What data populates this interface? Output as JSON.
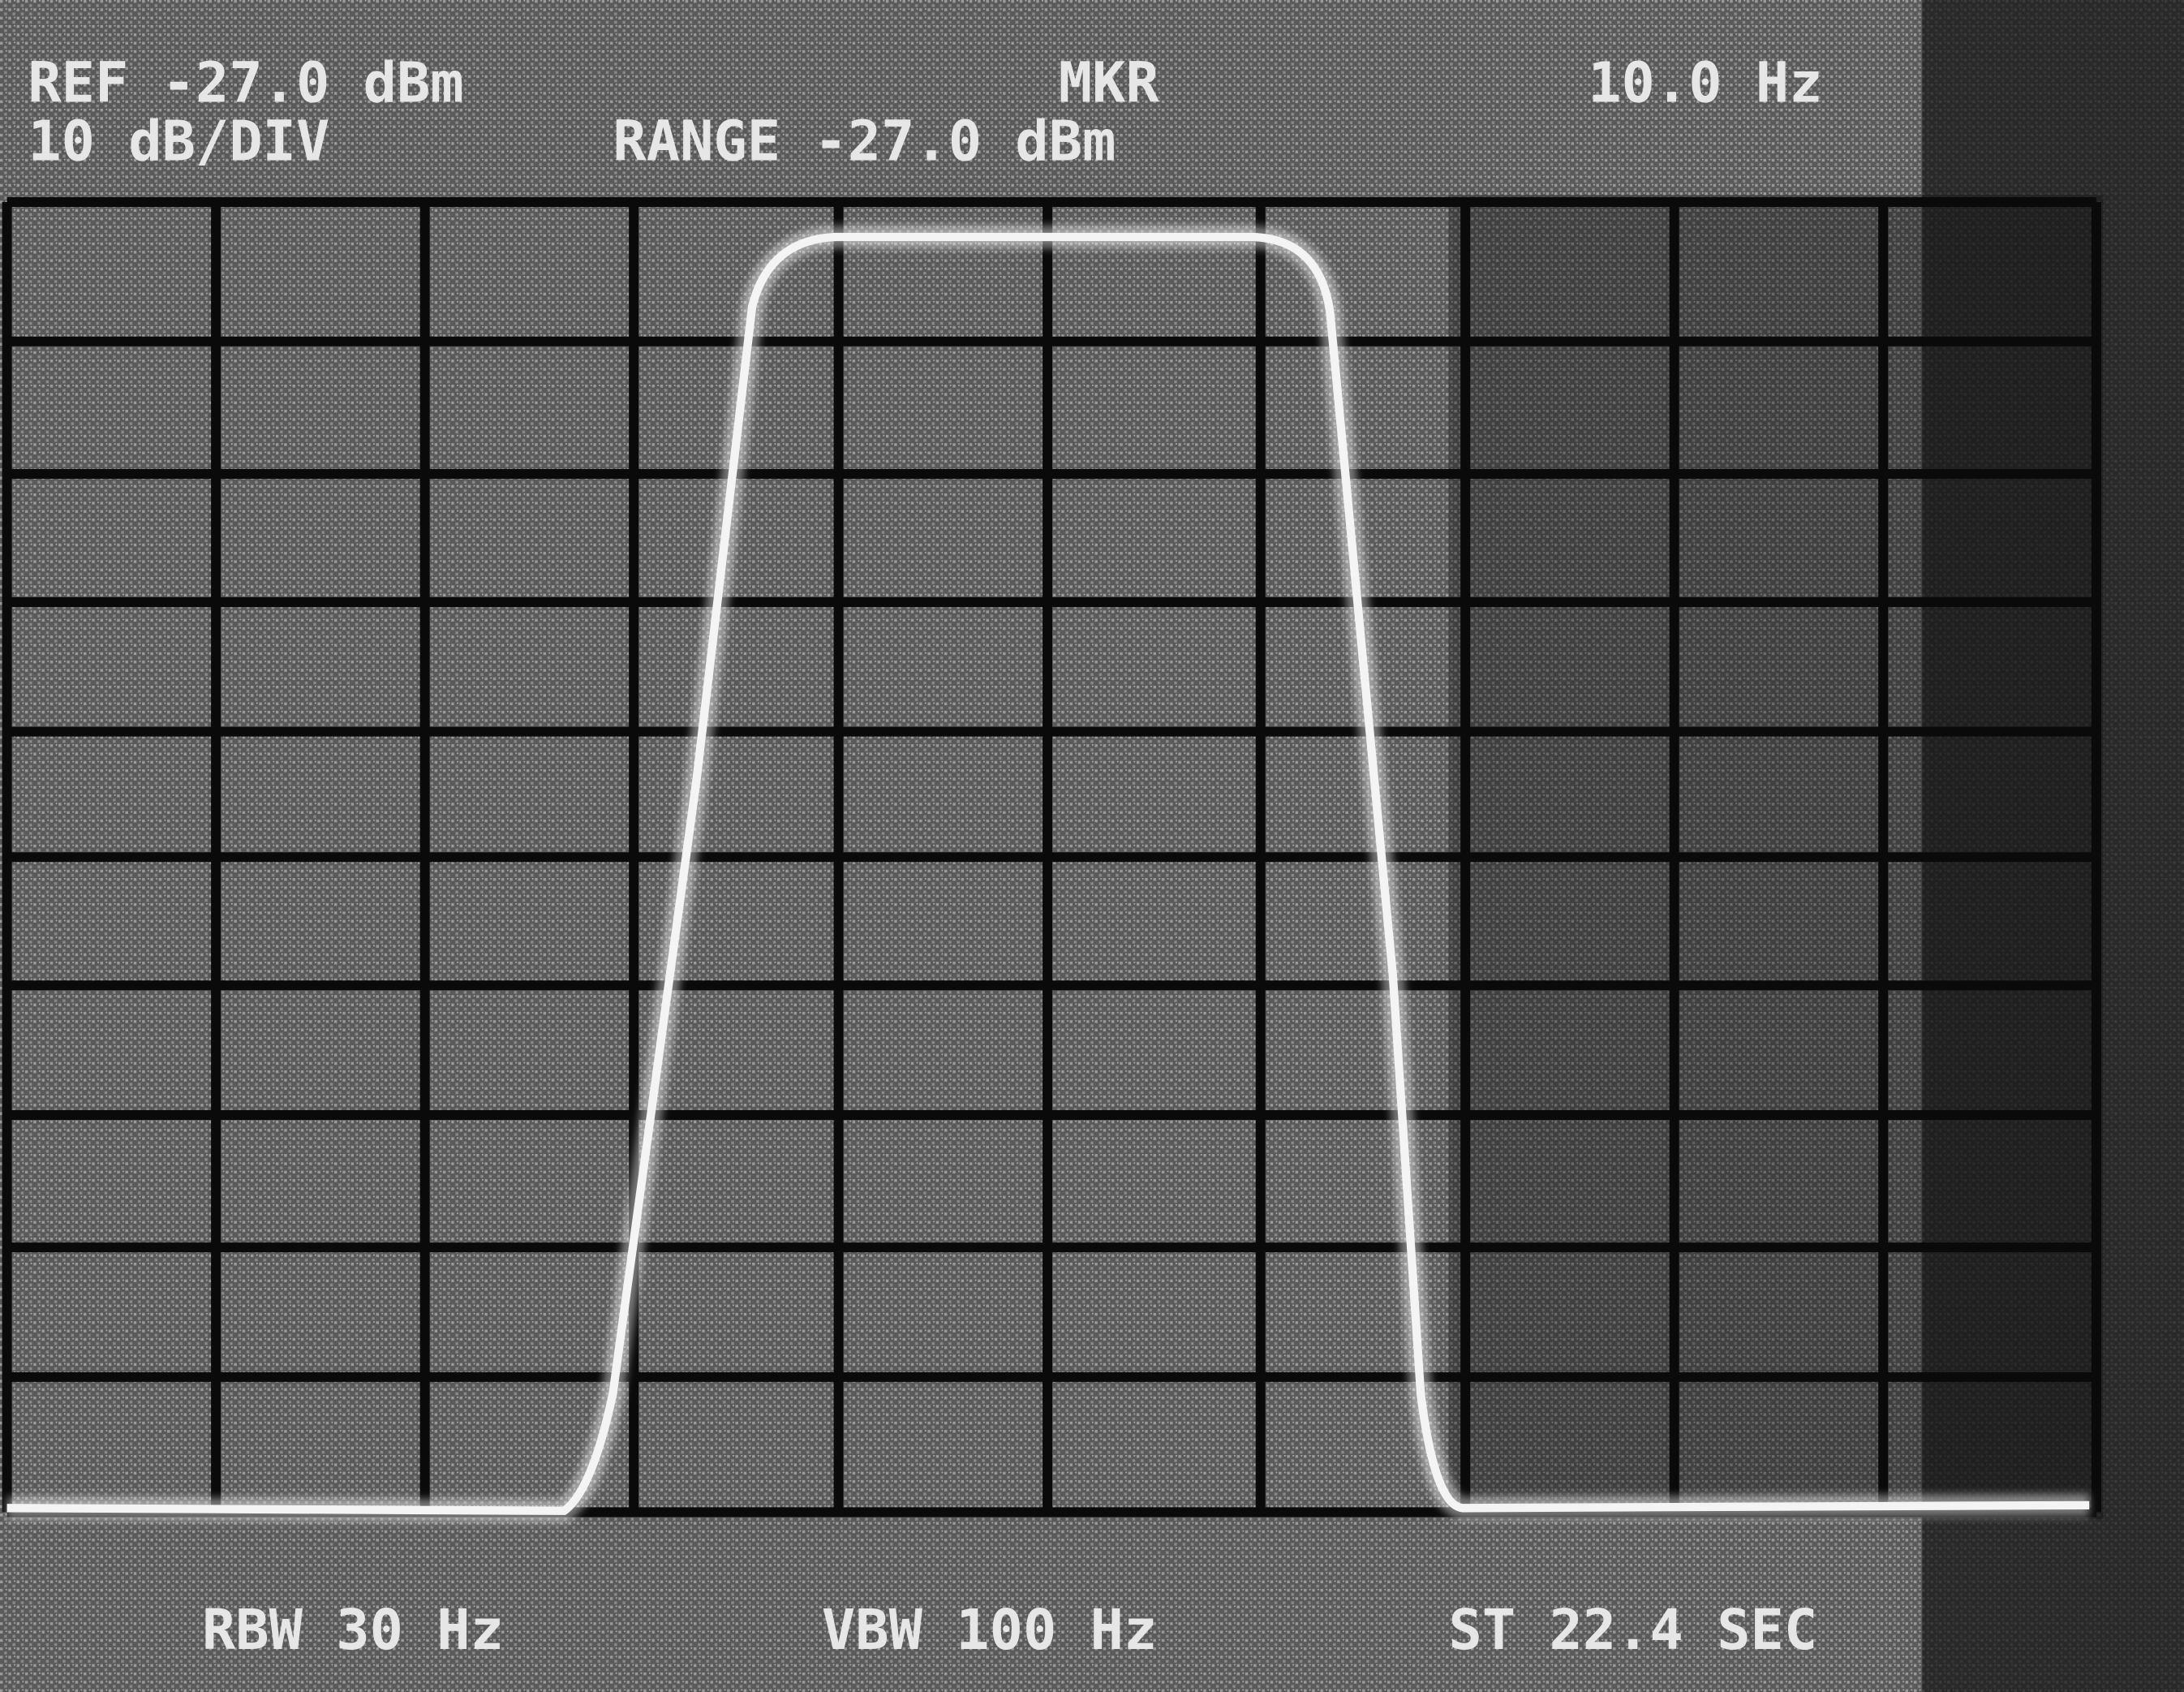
{
  "screen": {
    "header": {
      "reference": "REF -27.0 dBm",
      "scale": "10 dB/DIV",
      "range": "RANGE -27.0 dBm",
      "marker": "MKR",
      "marker_value": "10.0 Hz"
    },
    "footer": {
      "rbw": "RBW 30 Hz",
      "vbw": "VBW 100 Hz",
      "sweep": "ST 22.4 SEC"
    }
  }
}
